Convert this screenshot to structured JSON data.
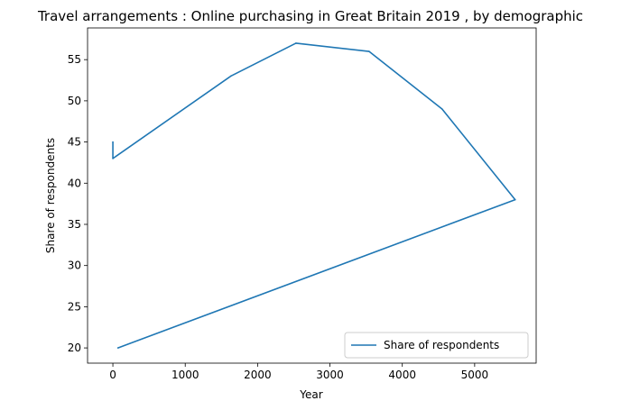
{
  "chart_data": {
    "type": "line",
    "title": "Travel arrangements : Online purchasing in Great Britain 2019 , by demographic",
    "xlabel": "Year",
    "ylabel": "Share of respondents",
    "xlim": [
      -350,
      5850
    ],
    "ylim": [
      18.15,
      58.85
    ],
    "xticks": [
      0,
      1000,
      2000,
      3000,
      4000,
      5000
    ],
    "yticks": [
      20,
      25,
      30,
      35,
      40,
      45,
      50,
      55
    ],
    "grid": false,
    "legend_position": "lower-right",
    "series": [
      {
        "name": "Share of respondents",
        "color": "#1f77b4",
        "x": [
          0,
          0,
          1630,
          2530,
          3540,
          4550,
          5560,
          70
        ],
        "y": [
          45,
          43,
          53,
          57,
          56,
          49,
          38,
          20
        ]
      }
    ]
  }
}
